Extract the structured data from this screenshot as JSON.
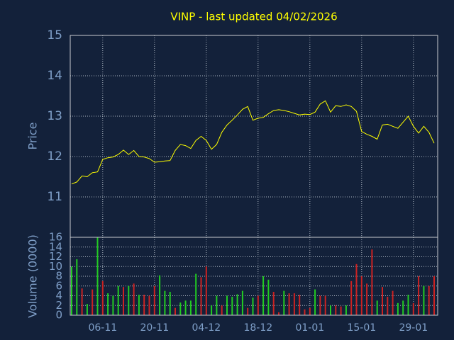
{
  "chart_data": [
    {
      "type": "line",
      "title": "VINP - last updated 04/02/2026",
      "ylabel": "Price",
      "color": "#ffff00",
      "ylim": [
        10,
        15
      ],
      "yticks": [
        11,
        12,
        13,
        14,
        15
      ],
      "grid": true,
      "values": [
        11.32,
        11.37,
        11.52,
        11.5,
        11.6,
        11.62,
        11.93,
        11.97,
        11.99,
        12.05,
        12.16,
        12.05,
        12.15,
        12.0,
        11.99,
        11.95,
        11.86,
        11.87,
        11.89,
        11.9,
        12.15,
        12.3,
        12.27,
        12.2,
        12.4,
        12.5,
        12.4,
        12.18,
        12.3,
        12.6,
        12.78,
        12.9,
        13.03,
        13.17,
        13.24,
        12.9,
        12.95,
        12.97,
        13.06,
        13.14,
        13.16,
        13.14,
        13.11,
        13.07,
        13.03,
        13.05,
        13.04,
        13.1,
        13.3,
        13.38,
        13.1,
        13.26,
        13.24,
        13.28,
        13.24,
        13.12,
        12.62,
        12.55,
        12.5,
        12.43,
        12.78,
        12.8,
        12.75,
        12.7,
        12.85,
        13.0,
        12.75,
        12.58,
        12.75,
        12.6,
        12.33
      ]
    },
    {
      "type": "bar",
      "ylabel": "Volume (0000)",
      "ylim": [
        0,
        16
      ],
      "yticks": [
        0,
        2,
        4,
        6,
        8,
        10,
        12,
        14,
        16
      ],
      "grid": true,
      "categories": [
        null,
        null,
        null,
        null,
        null,
        null,
        "06-11",
        null,
        null,
        null,
        null,
        null,
        null,
        null,
        null,
        null,
        "20-11",
        null,
        null,
        null,
        null,
        null,
        null,
        null,
        null,
        null,
        "04-12",
        null,
        null,
        null,
        null,
        null,
        null,
        null,
        null,
        null,
        "18-12",
        null,
        null,
        null,
        null,
        null,
        null,
        null,
        null,
        null,
        "01-01",
        null,
        null,
        null,
        null,
        null,
        null,
        null,
        null,
        null,
        "15-01",
        null,
        null,
        null,
        null,
        null,
        null,
        null,
        null,
        null,
        "29-01",
        null,
        null,
        null,
        null
      ],
      "values": [
        10,
        11.5,
        5.5,
        2.3,
        5.3,
        16,
        7,
        4.5,
        4,
        6,
        5.8,
        6,
        6.5,
        4.2,
        4.2,
        4,
        6,
        8.2,
        5,
        4.8,
        1.5,
        2.6,
        3,
        3,
        8.5,
        7.8,
        10,
        2,
        4,
        2,
        4,
        3.8,
        4.3,
        5,
        1.5,
        3.6,
        4,
        8,
        7.3,
        4.8,
        0.6,
        5,
        4.5,
        4.5,
        4.2,
        1.2,
        1.5,
        5.3,
        4,
        4,
        2,
        2,
        1.8,
        2,
        7,
        10.5,
        8,
        6.5,
        13.5,
        3,
        5.8,
        3.8,
        5,
        2.5,
        3,
        4.2,
        2.5,
        8,
        6,
        6,
        8
      ],
      "colors": [
        "#22cc22",
        "#22cc22",
        "#cc2222",
        "#22cc22",
        "#cc2222",
        "#22cc22",
        "#cc2222",
        "#22cc22",
        "#22cc22",
        "#22cc22",
        "#cc2222",
        "#22cc22",
        "#cc2222",
        "#22cc22",
        "#cc2222",
        "#cc2222",
        "#cc2222",
        "#22cc22",
        "#22cc22",
        "#22cc22",
        "#cc2222",
        "#22cc22",
        "#22cc22",
        "#22cc22",
        "#22cc22",
        "#cc2222",
        "#cc2222",
        "#22cc22",
        "#22cc22",
        "#cc2222",
        "#22cc22",
        "#22cc22",
        "#22cc22",
        "#22cc22",
        "#cc2222",
        "#22cc22",
        "#cc2222",
        "#22cc22",
        "#22cc22",
        "#cc2222",
        "#cc2222",
        "#22cc22",
        "#cc2222",
        "#cc2222",
        "#cc2222",
        "#cc2222",
        "#cc2222",
        "#22cc22",
        "#cc2222",
        "#cc2222",
        "#22cc22",
        "#cc2222",
        "#cc2222",
        "#22cc22",
        "#cc2222",
        "#cc2222",
        "#cc2222",
        "#cc2222",
        "#cc2222",
        "#22cc22",
        "#cc2222",
        "#cc2222",
        "#cc2222",
        "#22cc22",
        "#22cc22",
        "#22cc22",
        "#cc2222",
        "#cc2222",
        "#22cc22",
        "#cc2222",
        "#cc2222"
      ]
    }
  ]
}
